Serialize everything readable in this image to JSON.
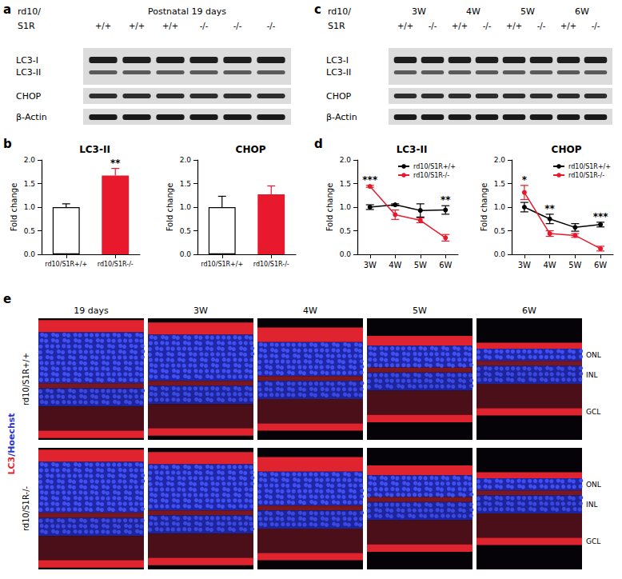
{
  "panel_labels": [
    "a",
    "b",
    "c",
    "d",
    "e"
  ],
  "blots": [
    {
      "header": [
        "rd10/",
        "S1R"
      ],
      "title": "Postnatal 19 days",
      "lanes": [
        "+/+",
        "+/+",
        "+/+",
        "-/-",
        "-/-",
        "-/-"
      ],
      "bands": [
        "LC3-I",
        "LC3-II",
        "CHOP",
        "β-Actin"
      ]
    },
    {
      "header": [
        "rd10/",
        "S1R"
      ],
      "groups": [
        "3W",
        "4W",
        "5W",
        "6W"
      ],
      "lanes": [
        "+/+",
        "-/-",
        "+/+",
        "-/-",
        "+/+",
        "-/-",
        "+/+",
        "-/-"
      ],
      "bands": [
        "LC3-I",
        "LC3-II",
        "CHOP",
        "β-Actin"
      ]
    }
  ],
  "chart_data": [
    {
      "type": "bar",
      "title": "LC3-II",
      "y_label": "Fold change",
      "categories": [
        "rd10/S1R+/+",
        "rd10/S1R-/-"
      ],
      "values": [
        1.0,
        1.67
      ],
      "errors": [
        0.07,
        0.15
      ],
      "colors": [
        "#ffffff",
        "#e8192c"
      ],
      "ylim": [
        0,
        2
      ],
      "yticks": [
        {
          "value": 0,
          "label": "0.0"
        },
        0.5,
        {
          "value": 1,
          "label": "1.0"
        },
        1.5,
        {
          "value": 2,
          "label": "2.0"
        }
      ],
      "annotations": [
        {
          "category": "rd10/S1R-/-",
          "text": "**"
        }
      ]
    },
    {
      "type": "bar",
      "title": "CHOP",
      "y_label": "Fold change",
      "categories": [
        "rd10/S1R+/+",
        "rd10/S1R-/-"
      ],
      "values": [
        1.0,
        1.27
      ],
      "errors": [
        0.23,
        0.18
      ],
      "colors": [
        "#ffffff",
        "#e8192c"
      ],
      "ylim": [
        0,
        2
      ],
      "yticks": [
        {
          "value": 0,
          "label": "0.0"
        },
        0.5,
        {
          "value": 1,
          "label": "1.0"
        },
        1.5,
        {
          "value": 2,
          "label": "2.0"
        }
      ]
    },
    {
      "type": "line",
      "title": "LC3-II",
      "y_label": "Fold change",
      "categories": [
        "3W",
        "4W",
        "5W",
        "6W"
      ],
      "series": [
        {
          "name": "rd10/S1R+/+",
          "color": "#000000",
          "marker": "circle",
          "values": [
            1.0,
            1.05,
            0.93,
            0.94
          ],
          "errors": [
            0.05,
            0.02,
            0.14,
            0.09
          ]
        },
        {
          "name": "rd10/S1R-/-",
          "color": "#e8192c",
          "marker": "circle",
          "values": [
            1.44,
            0.84,
            0.72,
            0.35
          ],
          "errors": [
            0.02,
            0.1,
            0.05,
            0.07
          ]
        }
      ],
      "ylim": [
        0,
        2
      ],
      "yticks": [
        {
          "value": 0,
          "label": "0.0"
        },
        0.5,
        {
          "value": 1,
          "label": "1.0"
        },
        1.5,
        {
          "value": 2,
          "label": "2.0"
        }
      ],
      "legend": "upper right",
      "annotations": [
        {
          "category": "3W",
          "text": "***"
        },
        {
          "category": "6W",
          "text": "**"
        }
      ]
    },
    {
      "type": "line",
      "title": "CHOP",
      "y_label": "Fold change",
      "categories": [
        "3W",
        "4W",
        "5W",
        "6W"
      ],
      "series": [
        {
          "name": "rd10/S1R+/+",
          "color": "#000000",
          "marker": "circle",
          "values": [
            1.0,
            0.75,
            0.57,
            0.63
          ],
          "errors": [
            0.1,
            0.1,
            0.08,
            0.05
          ]
        },
        {
          "name": "rd10/S1R-/-",
          "color": "#e8192c",
          "marker": "circle",
          "values": [
            1.31,
            0.44,
            0.4,
            0.12
          ],
          "errors": [
            0.15,
            0.06,
            0.04,
            0.05
          ]
        }
      ],
      "ylim": [
        0,
        2
      ],
      "yticks": [
        {
          "value": 0,
          "label": "0.0"
        },
        0.5,
        {
          "value": 1,
          "label": "1.0"
        },
        1.5,
        {
          "value": 2,
          "label": "2.0"
        }
      ],
      "legend": "upper right",
      "annotations": [
        {
          "category": "3W",
          "text": "*"
        },
        {
          "category": "4W",
          "text": "**"
        },
        {
          "category": "6W",
          "text": "***"
        }
      ]
    }
  ],
  "images": {
    "columns": [
      "19 days",
      "3W",
      "4W",
      "5W",
      "6W"
    ],
    "rows": [
      "rd10/S1R+/+",
      "rd10/S1R-/-"
    ],
    "stain": [
      {
        "text": "LC3",
        "color": "#e0242f"
      },
      {
        "text": "/Hoechst",
        "color": "#2b35d0"
      }
    ],
    "layers": [
      "ONL",
      "INL",
      "GCL"
    ]
  }
}
